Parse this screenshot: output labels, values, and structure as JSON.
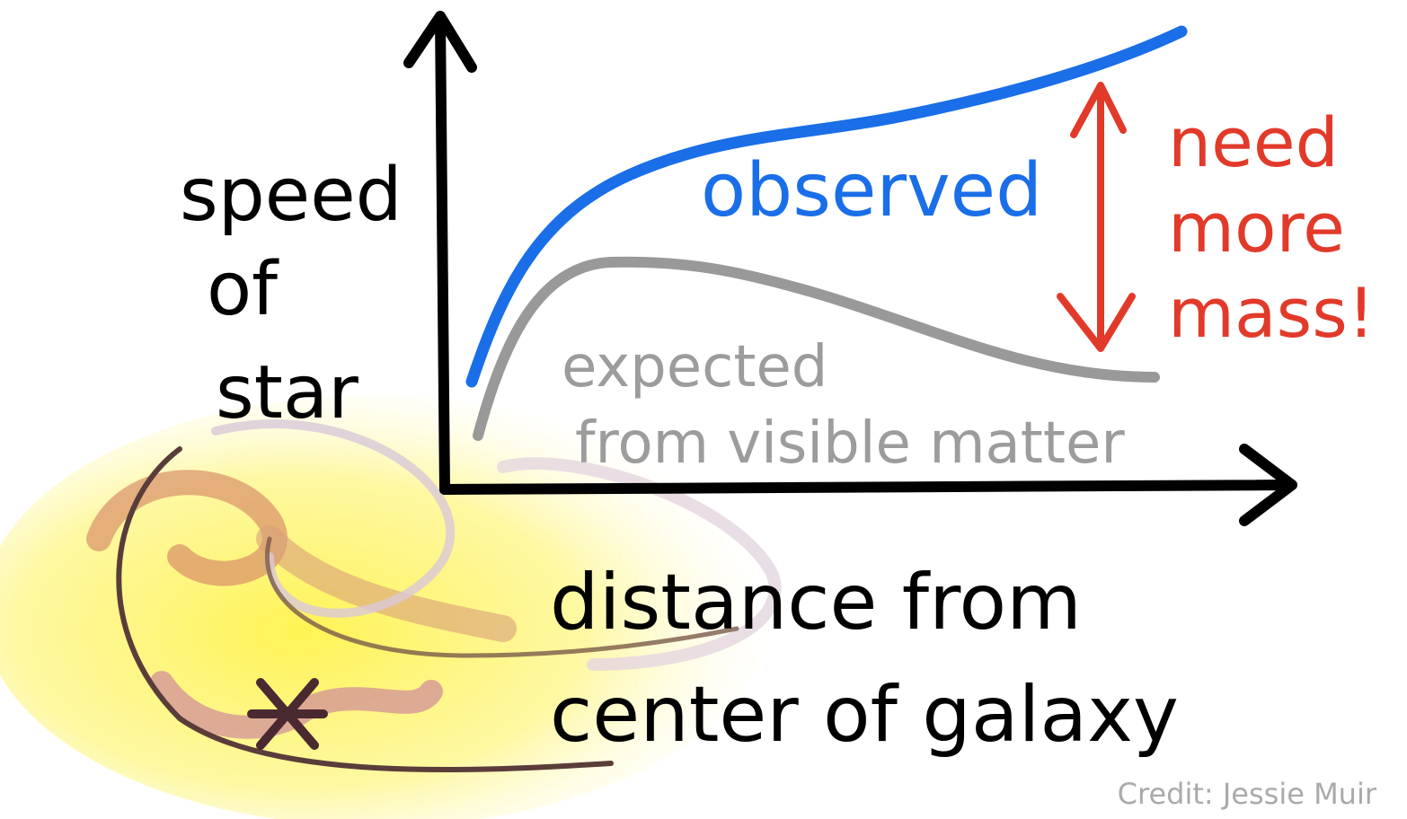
{
  "y_axis_label": [
    "speed",
    "of",
    "star"
  ],
  "x_axis_label": [
    "distance from",
    "center of galaxy"
  ],
  "observed_label": "observed",
  "expected_label": [
    "expected",
    "from visible matter"
  ],
  "annotation": [
    "need",
    "more",
    "mass!"
  ],
  "credit": "Credit: Jessie Muir"
}
